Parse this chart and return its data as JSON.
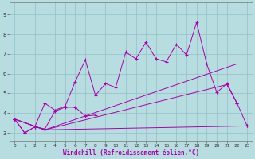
{
  "xlabel": "Windchill (Refroidissement éolien,°C)",
  "bg_color": "#b8dde0",
  "line_color": "#aa00aa",
  "grid_color": "#90c0c8",
  "xlim": [
    -0.5,
    23.5
  ],
  "ylim": [
    2.6,
    9.6
  ],
  "xticks": [
    0,
    1,
    2,
    3,
    4,
    5,
    6,
    7,
    8,
    9,
    10,
    11,
    12,
    13,
    14,
    15,
    16,
    17,
    18,
    19,
    20,
    21,
    22,
    23
  ],
  "yticks": [
    3,
    4,
    5,
    6,
    7,
    8,
    9
  ],
  "line1_x": [
    0,
    1,
    2,
    3,
    4,
    5,
    6,
    7,
    8,
    9,
    10,
    11,
    12,
    13,
    14,
    15,
    16,
    17,
    18,
    19,
    20,
    21,
    22
  ],
  "line1_y": [
    3.7,
    3.0,
    3.3,
    4.5,
    4.15,
    4.35,
    5.6,
    6.7,
    4.9,
    5.5,
    5.3,
    7.1,
    6.75,
    7.6,
    6.75,
    6.6,
    7.5,
    6.95,
    8.6,
    6.5,
    5.05,
    5.5,
    4.5
  ],
  "line2_x": [
    0,
    1,
    2,
    3,
    4,
    5,
    6,
    7,
    8
  ],
  "line2_y": [
    3.7,
    3.0,
    3.3,
    3.2,
    4.1,
    4.3,
    4.3,
    3.85,
    3.9
  ],
  "line3_x": [
    0,
    3,
    21,
    22,
    23
  ],
  "line3_y": [
    3.7,
    3.15,
    5.45,
    4.5,
    3.35
  ],
  "line4_x": [
    0,
    3,
    23
  ],
  "line4_y": [
    3.7,
    3.15,
    3.35
  ],
  "line5_x": [
    0,
    3,
    22
  ],
  "line5_y": [
    3.7,
    3.15,
    6.5
  ]
}
